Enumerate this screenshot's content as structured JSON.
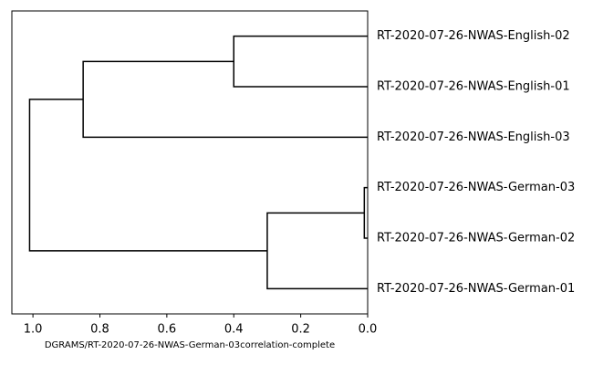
{
  "chart_data": {
    "type": "dendrogram",
    "leaves": [
      "RT-2020-07-26-NWAS-English-02",
      "RT-2020-07-26-NWAS-English-01",
      "RT-2020-07-26-NWAS-English-03",
      "RT-2020-07-26-NWAS-German-03",
      "RT-2020-07-26-NWAS-German-02",
      "RT-2020-07-26-NWAS-German-01"
    ],
    "merges": [
      {
        "left": 0,
        "right": 1,
        "height": 0.4
      },
      {
        "left": 6,
        "right": 2,
        "height": 0.85
      },
      {
        "left": 3,
        "right": 4,
        "height": 0.01
      },
      {
        "left": 8,
        "right": 5,
        "height": 0.3
      },
      {
        "left": 7,
        "right": 9,
        "height": 1.01
      }
    ],
    "color": "#000000",
    "xlabel": "DGRAMS/RT-2020-07-26-NWAS-German-03correlation-complete",
    "xlim": [
      1.063,
      0
    ],
    "xticks": [
      {
        "value": 1.0,
        "label": "1.0"
      },
      0.8,
      0.6,
      0.4,
      0.2,
      {
        "value": 0,
        "label": "0.0"
      }
    ]
  }
}
